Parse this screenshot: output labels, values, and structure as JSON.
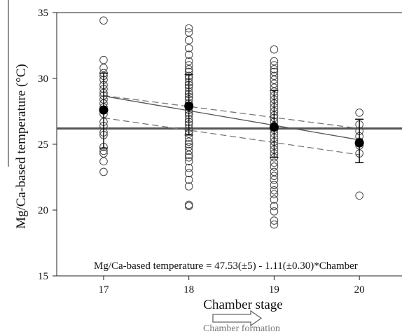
{
  "chart_data": {
    "type": "scatter",
    "title": "",
    "xlabel": "Chamber stage",
    "ylabel": "Mg/Ca-based temperature (°C)",
    "xlim": [
      16.45,
      20.5
    ],
    "ylim": [
      15,
      35
    ],
    "x_ticks": [
      17,
      18,
      19,
      20
    ],
    "y_ticks": [
      15,
      20,
      25,
      30,
      35
    ],
    "grid": false,
    "equation": "Mg/Ca-based temperature = 47.53(±5) - 1.11(±0.30)*Chamber",
    "arrow_label": "Chamber formation",
    "reference_line": {
      "y": 26.2,
      "color": "#555555"
    },
    "series": [
      {
        "x": 17,
        "points": [
          34.4,
          31.4,
          30.8,
          30.4,
          30.2,
          29.9,
          29.5,
          29.2,
          28.9,
          28.7,
          28.4,
          28.1,
          27.8,
          27.3,
          26.7,
          26.4,
          25.9,
          25.7,
          24.8,
          24.5,
          24.3,
          23.7,
          22.9
        ]
      },
      {
        "x": 18,
        "points": [
          33.8,
          33.5,
          32.9,
          32.3,
          31.8,
          31.3,
          31.0,
          30.7,
          30.5,
          30.2,
          30.0,
          29.7,
          29.5,
          29.3,
          29.0,
          28.8,
          28.6,
          28.4,
          28.1,
          27.9,
          27.6,
          27.4,
          27.2,
          26.9,
          26.7,
          26.5,
          26.2,
          26.0,
          25.8,
          25.5,
          25.2,
          25.0,
          24.8,
          24.5,
          24.2,
          24.0,
          23.7,
          23.2,
          22.8,
          22.3,
          21.8,
          20.4,
          20.3
        ]
      },
      {
        "x": 19,
        "points": [
          32.2,
          31.3,
          31.0,
          30.7,
          30.5,
          30.2,
          29.9,
          29.6,
          29.3,
          29.0,
          28.7,
          28.4,
          28.1,
          27.8,
          27.5,
          27.2,
          27.0,
          26.7,
          26.4,
          26.1,
          25.8,
          25.5,
          25.2,
          24.9,
          24.6,
          24.3,
          24.0,
          23.6,
          23.3,
          22.9,
          22.6,
          22.3,
          21.9,
          21.5,
          21.2,
          20.8,
          20.3,
          19.9,
          19.2,
          18.9
        ]
      },
      {
        "x": 20,
        "points": [
          27.4,
          26.5,
          26.0,
          25.6,
          25.2,
          24.9,
          24.3,
          21.1
        ]
      }
    ],
    "means": [
      {
        "x": 17,
        "y": 27.6,
        "lower": 24.7,
        "upper": 30.4
      },
      {
        "x": 18,
        "y": 27.9,
        "lower": 25.7,
        "upper": 30.3
      },
      {
        "x": 19,
        "y": 26.3,
        "lower": 24.0,
        "upper": 29.1
      },
      {
        "x": 20,
        "y": 25.1,
        "lower": 23.6,
        "upper": 26.9
      }
    ],
    "regression": {
      "intercept": 47.53,
      "slope": -1.11
    },
    "confidence_band": {
      "upper": [
        [
          17,
          28.7
        ],
        [
          20,
          26.2
        ]
      ],
      "lower": [
        [
          17,
          27.0
        ],
        [
          20,
          24.2
        ]
      ]
    }
  }
}
